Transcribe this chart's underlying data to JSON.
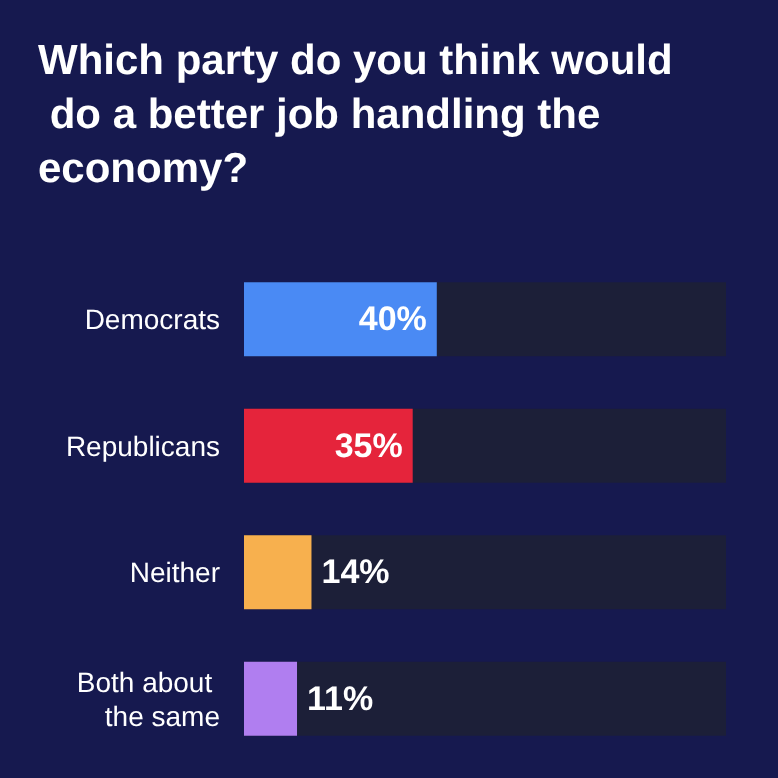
{
  "chart_data": {
    "type": "bar",
    "orientation": "horizontal",
    "title": "Which party do you think would do a better job handling the economy?",
    "categories": [
      "Democrats",
      "Republicans",
      "Neither",
      "Both about the same"
    ],
    "values": [
      40,
      35,
      14,
      11
    ],
    "colors": [
      "#4a8af4",
      "#e5243b",
      "#f7b04e",
      "#b07ef0"
    ],
    "value_labels": [
      "40%",
      "35%",
      "14%",
      "11%"
    ],
    "xlim": [
      0,
      100
    ],
    "tick_labels": "y"
  }
}
